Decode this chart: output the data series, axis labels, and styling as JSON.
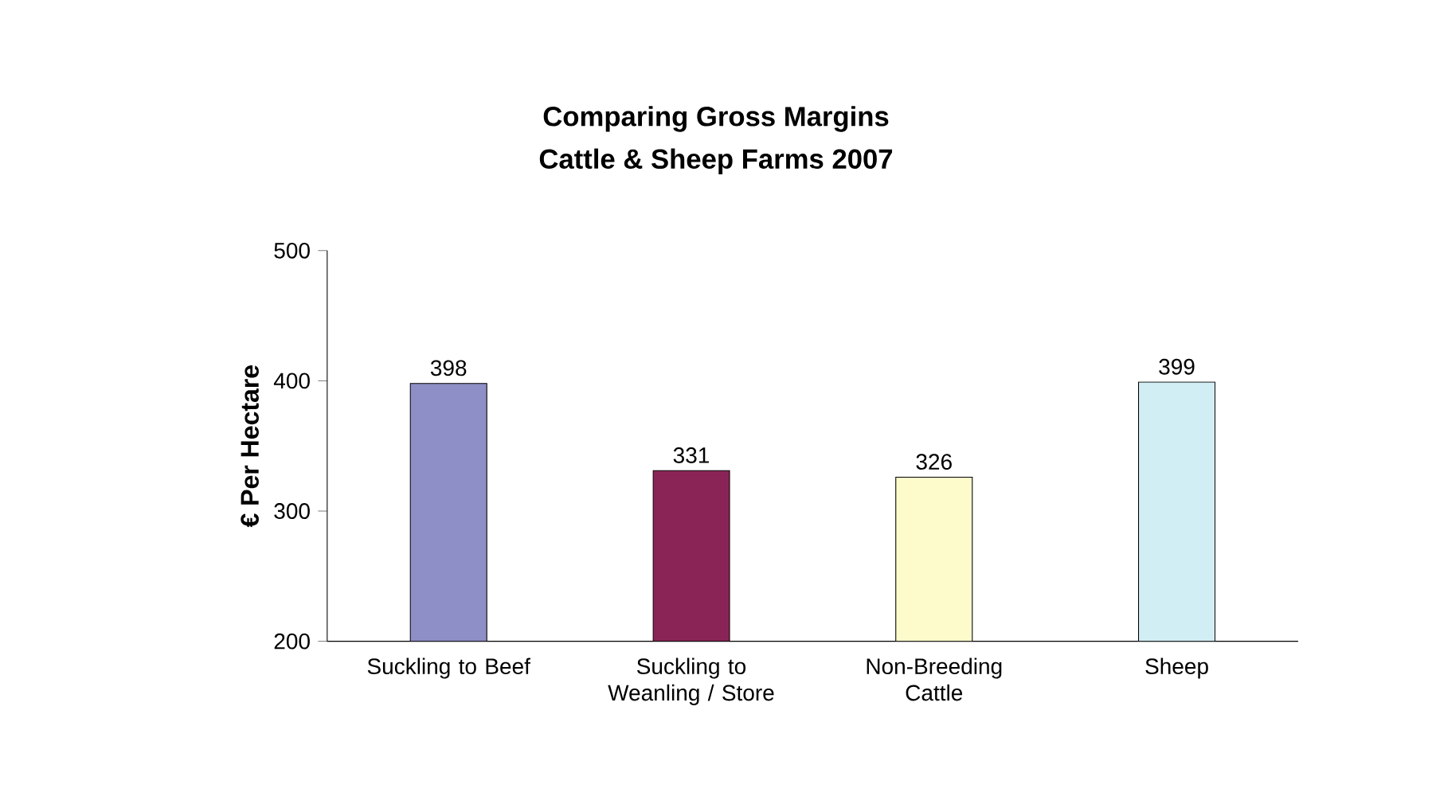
{
  "chart_data": {
    "type": "bar",
    "title": "Comparing Gross Margins",
    "subtitle": "Cattle & Sheep Farms 2007",
    "ylabel": "€ Per Hectare",
    "categories": [
      "Suckling to Beef",
      "Suckling to Weanling / Store",
      "Non-Breeding Cattle",
      "Sheep"
    ],
    "values": [
      398,
      331,
      326,
      399
    ],
    "colors": [
      "#8e8fc6",
      "#8b2456",
      "#fdfbcb",
      "#d2eef5"
    ],
    "ylim": [
      200,
      500
    ],
    "yticks": [
      200,
      300,
      400,
      500
    ],
    "grid": false,
    "data_labels": true
  }
}
